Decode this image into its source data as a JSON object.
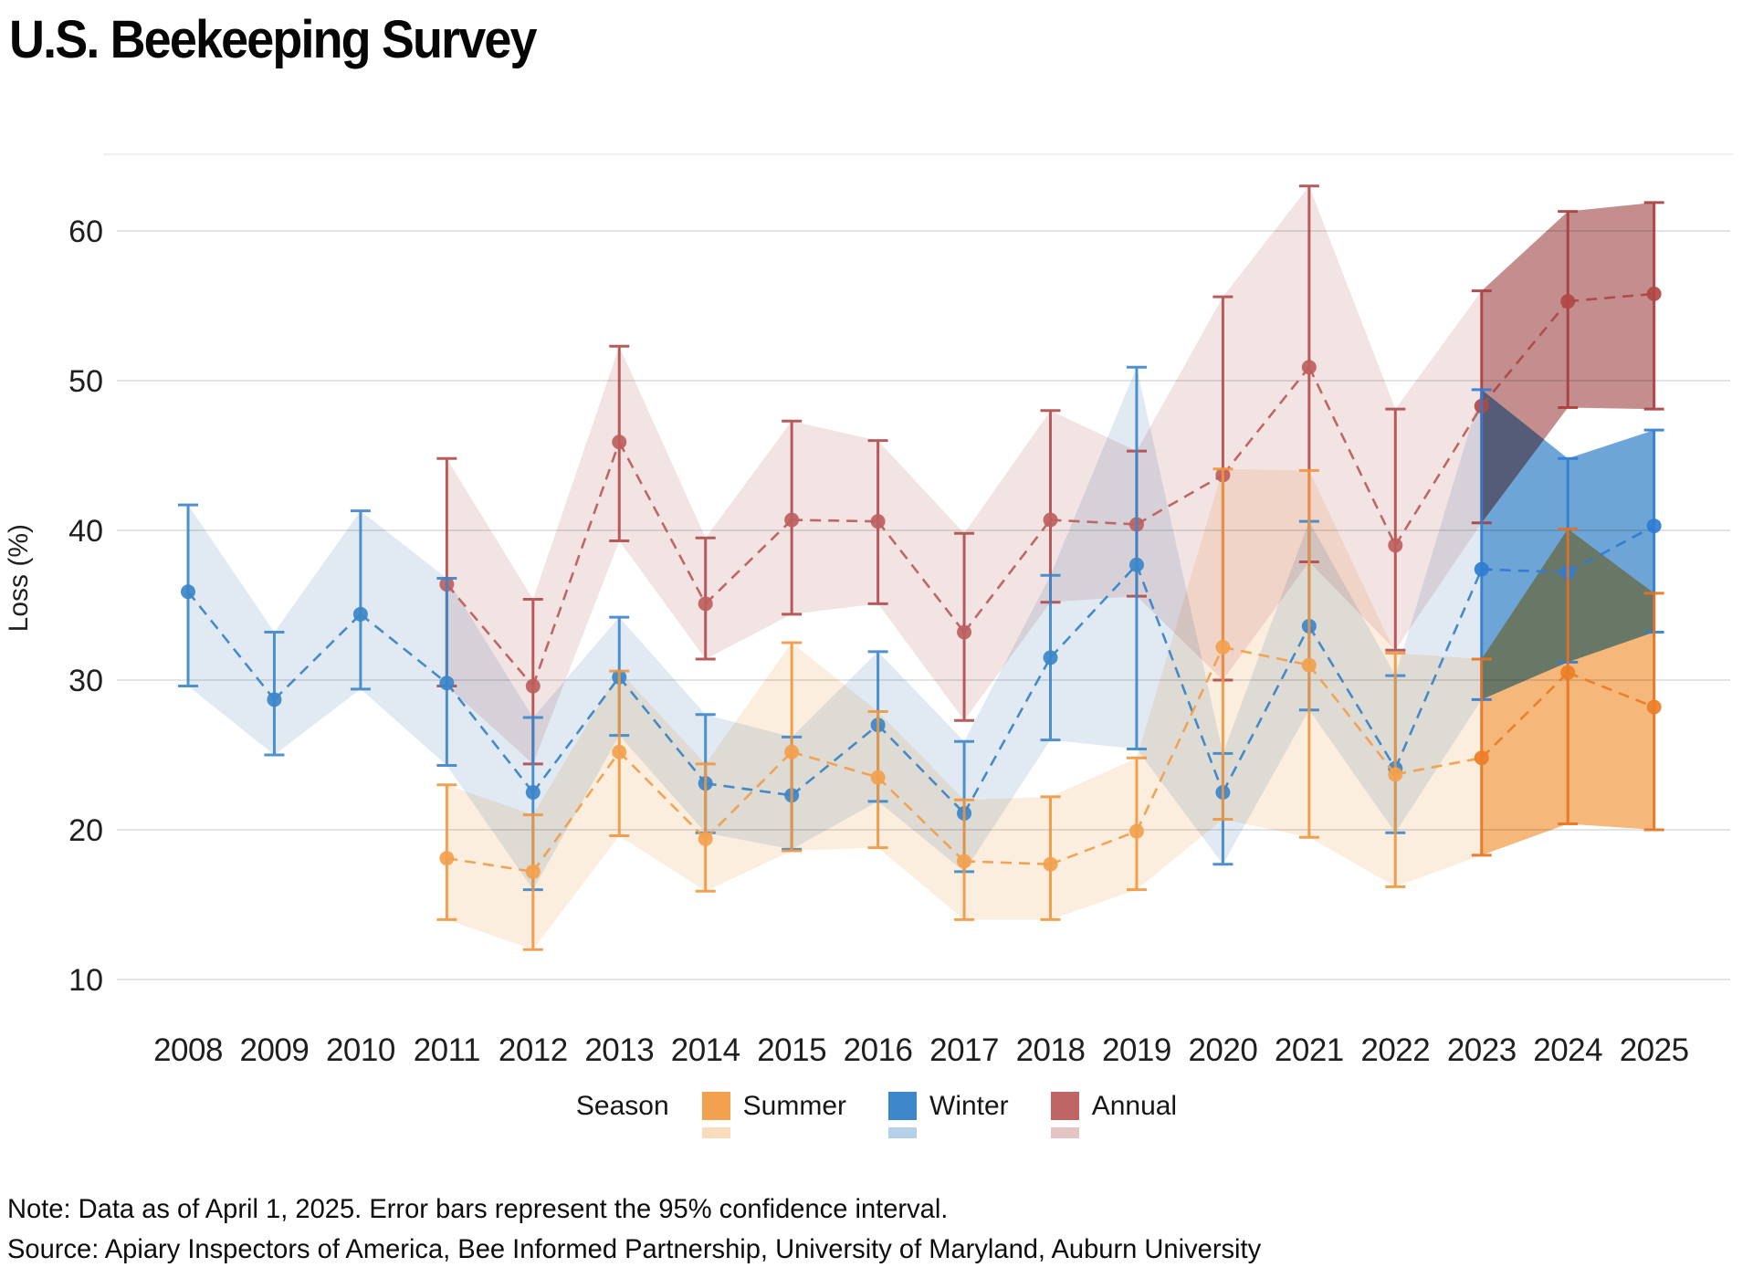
{
  "header": {
    "title": "U.S. Beekeeping Survey"
  },
  "chart_data": {
    "type": "line",
    "title": "U.S. Beekeeping Survey",
    "xlabel": "",
    "ylabel": "Loss (%)",
    "ylim": [
      8,
      65
    ],
    "yticks": [
      10,
      20,
      30,
      40,
      50,
      60
    ],
    "grid": "horizontal",
    "legend_position": "bottom",
    "legend_title": "Season",
    "recent_era_start": 2023,
    "years": [
      2008,
      2009,
      2010,
      2011,
      2012,
      2013,
      2014,
      2015,
      2016,
      2017,
      2018,
      2019,
      2020,
      2021,
      2022,
      2023,
      2024,
      2025
    ],
    "series": [
      {
        "name": "Summer",
        "colors": {
          "swatch": "#F2A14E",
          "line": "#F2A14E",
          "line_recent": "#EC7E26",
          "errorbar": "#EF9740",
          "errorbar_recent": "#E8721F",
          "band": "#FCEEDF",
          "band_recent": "#F5B87A"
        },
        "points": [
          {
            "year": 2011,
            "value": 18.1,
            "lo": 14.0,
            "hi": 23.0
          },
          {
            "year": 2012,
            "value": 17.2,
            "lo": 12.0,
            "hi": 21.0
          },
          {
            "year": 2013,
            "value": 25.2,
            "lo": 19.6,
            "hi": 30.6
          },
          {
            "year": 2014,
            "value": 19.4,
            "lo": 15.9,
            "hi": 24.4
          },
          {
            "year": 2015,
            "value": 25.2,
            "lo": 18.6,
            "hi": 32.5
          },
          {
            "year": 2016,
            "value": 23.5,
            "lo": 18.8,
            "hi": 27.9
          },
          {
            "year": 2017,
            "value": 17.9,
            "lo": 14.0,
            "hi": 22.0
          },
          {
            "year": 2018,
            "value": 17.7,
            "lo": 14.0,
            "hi": 22.2
          },
          {
            "year": 2019,
            "value": 19.9,
            "lo": 16.0,
            "hi": 24.8
          },
          {
            "year": 2020,
            "value": 32.2,
            "lo": 20.7,
            "hi": 44.1
          },
          {
            "year": 2021,
            "value": 31.0,
            "lo": 19.5,
            "hi": 44.0
          },
          {
            "year": 2022,
            "value": 23.7,
            "lo": 16.2,
            "hi": 31.8
          },
          {
            "year": 2023,
            "value": 24.8,
            "lo": 18.3,
            "hi": 31.4
          },
          {
            "year": 2024,
            "value": 30.5,
            "lo": 20.4,
            "hi": 40.1
          },
          {
            "year": 2025,
            "value": 28.2,
            "lo": 20.0,
            "hi": 35.8
          }
        ]
      },
      {
        "name": "Winter",
        "colors": {
          "swatch": "#3C86C9",
          "line": "#3C86C9",
          "line_recent": "#2F7CD3",
          "errorbar": "#3C86C9",
          "errorbar_recent": "#2F7CD3",
          "band": "#E1EAF3",
          "band_recent": "#6DA5D7"
        },
        "points": [
          {
            "year": 2008,
            "value": 35.9,
            "lo": 29.6,
            "hi": 41.7
          },
          {
            "year": 2009,
            "value": 28.7,
            "lo": 25.0,
            "hi": 33.2
          },
          {
            "year": 2010,
            "value": 34.4,
            "lo": 29.4,
            "hi": 41.3
          },
          {
            "year": 2011,
            "value": 29.8,
            "lo": 24.3,
            "hi": 36.8
          },
          {
            "year": 2012,
            "value": 22.5,
            "lo": 16.0,
            "hi": 27.5
          },
          {
            "year": 2013,
            "value": 30.2,
            "lo": 26.3,
            "hi": 34.2
          },
          {
            "year": 2014,
            "value": 23.1,
            "lo": 19.8,
            "hi": 27.7
          },
          {
            "year": 2015,
            "value": 22.3,
            "lo": 18.7,
            "hi": 26.2
          },
          {
            "year": 2016,
            "value": 27.0,
            "lo": 21.9,
            "hi": 31.9
          },
          {
            "year": 2017,
            "value": 21.1,
            "lo": 17.2,
            "hi": 25.9
          },
          {
            "year": 2018,
            "value": 31.5,
            "lo": 26.0,
            "hi": 37.0
          },
          {
            "year": 2019,
            "value": 37.7,
            "lo": 25.4,
            "hi": 50.9
          },
          {
            "year": 2020,
            "value": 22.5,
            "lo": 17.7,
            "hi": 25.1
          },
          {
            "year": 2021,
            "value": 33.6,
            "lo": 28.0,
            "hi": 40.6
          },
          {
            "year": 2022,
            "value": 24.1,
            "lo": 19.8,
            "hi": 30.3
          },
          {
            "year": 2023,
            "value": 37.4,
            "lo": 28.7,
            "hi": 49.4
          },
          {
            "year": 2024,
            "value": 37.2,
            "lo": 31.2,
            "hi": 44.8
          },
          {
            "year": 2025,
            "value": 40.3,
            "lo": 33.2,
            "hi": 46.7
          }
        ]
      },
      {
        "name": "Annual",
        "colors": {
          "swatch": "#BF6565",
          "line": "#BE6060",
          "line_recent": "#B04848",
          "errorbar": "#B04B4B",
          "errorbar_recent": "#A93C3C",
          "band": "#F3E4E4",
          "band_recent": "#C48E8E"
        },
        "points": [
          {
            "year": 2011,
            "value": 36.4,
            "lo": 29.6,
            "hi": 44.8
          },
          {
            "year": 2012,
            "value": 29.6,
            "lo": 24.4,
            "hi": 35.4
          },
          {
            "year": 2013,
            "value": 45.9,
            "lo": 39.3,
            "hi": 52.3
          },
          {
            "year": 2014,
            "value": 35.1,
            "lo": 31.4,
            "hi": 39.5
          },
          {
            "year": 2015,
            "value": 40.7,
            "lo": 34.4,
            "hi": 47.3
          },
          {
            "year": 2016,
            "value": 40.6,
            "lo": 35.1,
            "hi": 46.0
          },
          {
            "year": 2017,
            "value": 33.2,
            "lo": 27.3,
            "hi": 39.8
          },
          {
            "year": 2018,
            "value": 40.7,
            "lo": 35.2,
            "hi": 48.0
          },
          {
            "year": 2019,
            "value": 40.4,
            "lo": 35.6,
            "hi": 45.3
          },
          {
            "year": 2020,
            "value": 43.7,
            "lo": 30.0,
            "hi": 55.6
          },
          {
            "year": 2021,
            "value": 50.9,
            "lo": 37.9,
            "hi": 63.0
          },
          {
            "year": 2022,
            "value": 39.0,
            "lo": 32.0,
            "hi": 48.1
          },
          {
            "year": 2023,
            "value": 48.3,
            "lo": 40.5,
            "hi": 56.0
          },
          {
            "year": 2024,
            "value": 55.3,
            "lo": 48.2,
            "hi": 61.3
          },
          {
            "year": 2025,
            "value": 55.8,
            "lo": 48.1,
            "hi": 61.9
          }
        ]
      }
    ]
  },
  "footer": {
    "note": "Note: Data as of April 1, 2025. Error bars represent the 95% confidence interval.",
    "source": "Source: Apiary Inspectors of America, Bee Informed Partnership, University of Maryland, Auburn University"
  }
}
